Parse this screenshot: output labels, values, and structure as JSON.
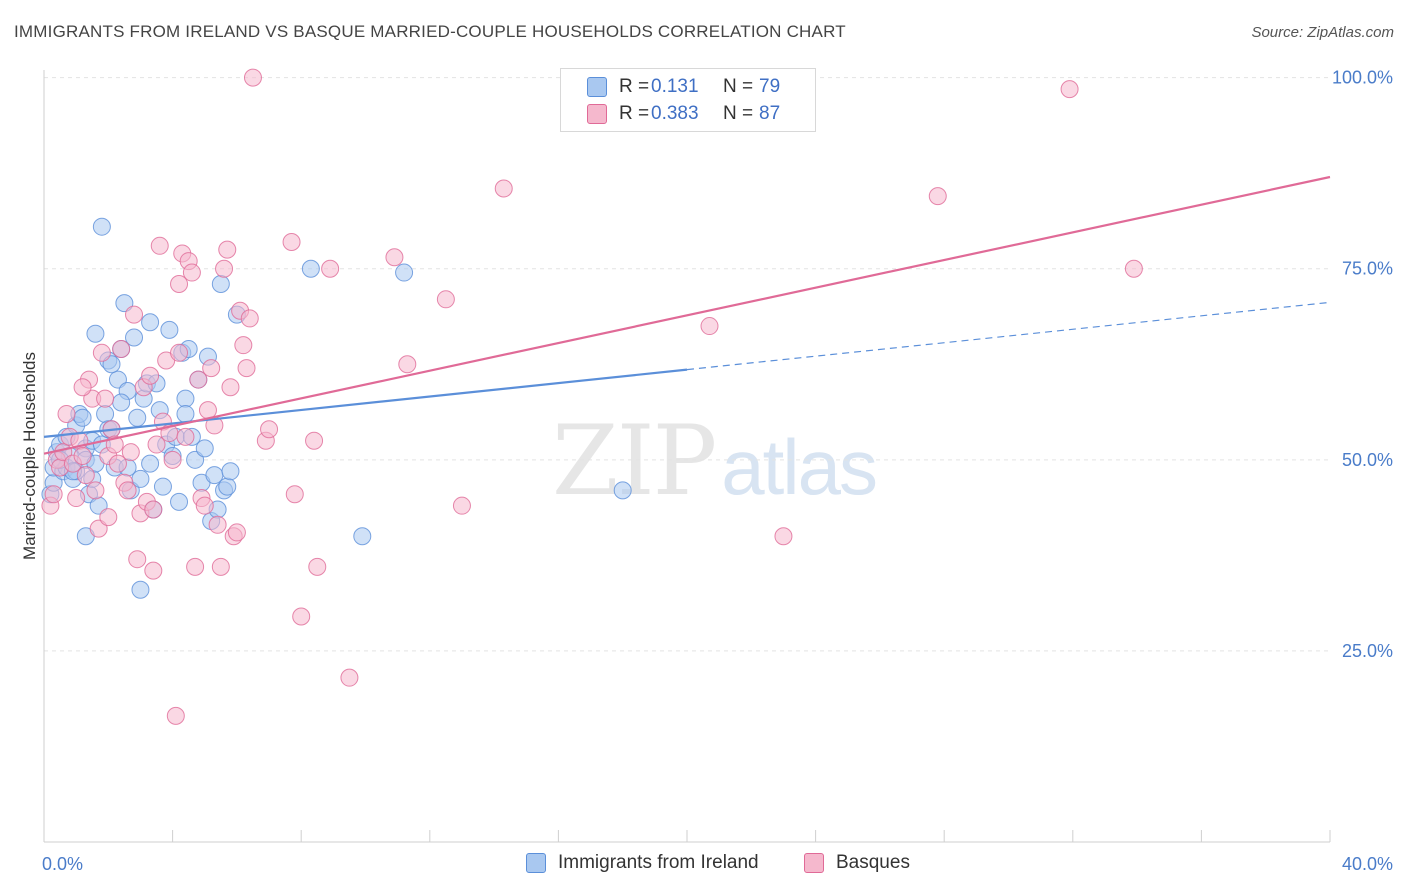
{
  "title": "IMMIGRANTS FROM IRELAND VS BASQUE MARRIED-COUPLE HOUSEHOLDS CORRELATION CHART",
  "source": "Source: ZipAtlas.com",
  "watermark": {
    "zip": "ZIP",
    "atlas": "atlas"
  },
  "colors": {
    "blue": "#5b8fd9",
    "blue_fill": "#a9c8f0",
    "pink": "#e06a97",
    "pink_fill": "#f5b8cd",
    "grid": "#e3e3e3",
    "axis_text": "#4a7cc9"
  },
  "legend_top": [
    {
      "r_label": "R =",
      "r_value": "0.131",
      "n_label": "N =",
      "n_value": "79"
    },
    {
      "r_label": "R =",
      "r_value": "0.383",
      "n_label": "N =",
      "n_value": "87"
    }
  ],
  "legend_bottom": [
    {
      "label": "Immigrants from Ireland"
    },
    {
      "label": "Basques"
    }
  ],
  "chart_data": {
    "type": "scatter",
    "title": "IMMIGRANTS FROM IRELAND VS BASQUE MARRIED-COUPLE HOUSEHOLDS CORRELATION CHART",
    "xlabel": "",
    "ylabel": "Married-couple Households",
    "xlim": [
      0,
      40
    ],
    "ylim": [
      0,
      101
    ],
    "x_tick_labels": [
      "0.0%",
      "40.0%"
    ],
    "y_ticks": [
      25,
      50,
      75,
      100
    ],
    "y_tick_labels": [
      "25.0%",
      "50.0%",
      "75.0%",
      "100.0%"
    ],
    "grid": true,
    "legend_placement": "top-center",
    "series": [
      {
        "name": "Immigrants from Ireland",
        "color": "#5b8fd9",
        "trend": {
          "x0": 0,
          "y0": 53.0,
          "x1": 20,
          "y1": 61.8,
          "dashed_to_x": 40,
          "dashed_to_y": 70.6
        },
        "points": [
          [
            0.2,
            45.5
          ],
          [
            0.3,
            47
          ],
          [
            0.3,
            49
          ],
          [
            0.4,
            51
          ],
          [
            0.5,
            52
          ],
          [
            0.6,
            48.5
          ],
          [
            0.7,
            53
          ],
          [
            0.7,
            49
          ],
          [
            0.8,
            50.5
          ],
          [
            0.9,
            47.5
          ],
          [
            1.0,
            48.5
          ],
          [
            1.0,
            54.5
          ],
          [
            1.1,
            56
          ],
          [
            1.2,
            55.5
          ],
          [
            1.3,
            51.5
          ],
          [
            1.3,
            50
          ],
          [
            1.4,
            45.5
          ],
          [
            1.5,
            47.5
          ],
          [
            1.5,
            52.5
          ],
          [
            1.6,
            49.5
          ],
          [
            1.7,
            44
          ],
          [
            1.8,
            52
          ],
          [
            1.9,
            56
          ],
          [
            2.0,
            63
          ],
          [
            2.0,
            54
          ],
          [
            2.1,
            54
          ],
          [
            2.2,
            49
          ],
          [
            2.3,
            60.5
          ],
          [
            2.4,
            64.5
          ],
          [
            2.5,
            70.5
          ],
          [
            2.6,
            49
          ],
          [
            2.7,
            46
          ],
          [
            2.8,
            66
          ],
          [
            2.9,
            55.5
          ],
          [
            3.0,
            47.5
          ],
          [
            3.1,
            58
          ],
          [
            3.2,
            60
          ],
          [
            3.3,
            68
          ],
          [
            3.4,
            43.5
          ],
          [
            3.5,
            60
          ],
          [
            3.6,
            56.5
          ],
          [
            3.7,
            46.5
          ],
          [
            3.8,
            52
          ],
          [
            3.9,
            67
          ],
          [
            4.0,
            50.5
          ],
          [
            4.1,
            53
          ],
          [
            4.2,
            44.5
          ],
          [
            4.3,
            64
          ],
          [
            4.4,
            58
          ],
          [
            4.5,
            64.5
          ],
          [
            4.6,
            53
          ],
          [
            4.7,
            50
          ],
          [
            4.8,
            60.5
          ],
          [
            4.9,
            47
          ],
          [
            5.0,
            51.5
          ],
          [
            5.1,
            63.5
          ],
          [
            5.2,
            42
          ],
          [
            5.3,
            48
          ],
          [
            5.4,
            43.5
          ],
          [
            5.5,
            73
          ],
          [
            5.6,
            46
          ],
          [
            5.7,
            46.5
          ],
          [
            5.8,
            48.5
          ],
          [
            6.0,
            69
          ],
          [
            1.8,
            80.5
          ],
          [
            3.0,
            33
          ],
          [
            1.3,
            40
          ],
          [
            2.1,
            62.5
          ],
          [
            2.6,
            59
          ],
          [
            3.3,
            49.5
          ],
          [
            8.3,
            75
          ],
          [
            11.2,
            74.5
          ],
          [
            9.9,
            40
          ],
          [
            18.0,
            46
          ],
          [
            0.5,
            50
          ],
          [
            0.9,
            48.5
          ],
          [
            1.6,
            66.5
          ],
          [
            4.4,
            56
          ],
          [
            2.4,
            57.5
          ]
        ]
      },
      {
        "name": "Basques",
        "color": "#e06a97",
        "trend": {
          "x0": 0,
          "y0": 50.8,
          "x1": 40,
          "y1": 87.0
        },
        "points": [
          [
            0.2,
            44
          ],
          [
            0.3,
            45.5
          ],
          [
            0.4,
            50
          ],
          [
            0.5,
            49
          ],
          [
            0.6,
            51
          ],
          [
            0.7,
            56
          ],
          [
            0.8,
            53
          ],
          [
            0.9,
            49.5
          ],
          [
            1.0,
            45
          ],
          [
            1.1,
            52.5
          ],
          [
            1.2,
            50.5
          ],
          [
            1.3,
            48
          ],
          [
            1.4,
            60.5
          ],
          [
            1.5,
            58
          ],
          [
            1.6,
            46
          ],
          [
            1.7,
            41
          ],
          [
            1.8,
            64
          ],
          [
            1.9,
            58
          ],
          [
            2.0,
            50.5
          ],
          [
            2.1,
            54
          ],
          [
            2.2,
            52
          ],
          [
            2.3,
            49.5
          ],
          [
            2.4,
            64.5
          ],
          [
            2.5,
            47
          ],
          [
            2.6,
            46
          ],
          [
            2.7,
            51
          ],
          [
            2.8,
            69
          ],
          [
            2.9,
            37
          ],
          [
            3.0,
            43
          ],
          [
            3.1,
            59.5
          ],
          [
            3.2,
            44.5
          ],
          [
            3.3,
            61
          ],
          [
            3.4,
            43.5
          ],
          [
            3.5,
            52
          ],
          [
            3.6,
            78
          ],
          [
            3.7,
            55
          ],
          [
            3.8,
            63
          ],
          [
            3.9,
            53.5
          ],
          [
            4.0,
            50
          ],
          [
            4.1,
            16.5
          ],
          [
            4.2,
            64
          ],
          [
            4.3,
            77
          ],
          [
            4.4,
            53
          ],
          [
            4.5,
            76
          ],
          [
            4.6,
            74.5
          ],
          [
            4.7,
            36
          ],
          [
            4.8,
            60.5
          ],
          [
            4.9,
            45
          ],
          [
            5.0,
            44
          ],
          [
            5.1,
            56.5
          ],
          [
            5.2,
            62
          ],
          [
            5.3,
            54.5
          ],
          [
            5.4,
            41.5
          ],
          [
            5.5,
            36
          ],
          [
            5.6,
            75
          ],
          [
            5.7,
            77.5
          ],
          [
            5.8,
            59.5
          ],
          [
            5.9,
            40
          ],
          [
            6.0,
            40.5
          ],
          [
            6.1,
            69.5
          ],
          [
            6.2,
            65
          ],
          [
            6.3,
            62
          ],
          [
            6.4,
            68.5
          ],
          [
            6.5,
            100
          ],
          [
            6.9,
            52.5
          ],
          [
            7.0,
            54
          ],
          [
            7.7,
            78.5
          ],
          [
            7.8,
            45.5
          ],
          [
            8.0,
            29.5
          ],
          [
            8.4,
            52.5
          ],
          [
            8.5,
            36
          ],
          [
            8.9,
            75
          ],
          [
            9.5,
            21.5
          ],
          [
            10.9,
            76.5
          ],
          [
            11.3,
            62.5
          ],
          [
            12.5,
            71
          ],
          [
            13.0,
            44
          ],
          [
            14.3,
            85.5
          ],
          [
            20.7,
            67.5
          ],
          [
            23.0,
            40
          ],
          [
            27.8,
            84.5
          ],
          [
            31.9,
            98.5
          ],
          [
            33.9,
            75
          ],
          [
            1.2,
            59.5
          ],
          [
            2.0,
            42.5
          ],
          [
            3.4,
            35.5
          ],
          [
            4.2,
            73
          ]
        ]
      }
    ]
  }
}
